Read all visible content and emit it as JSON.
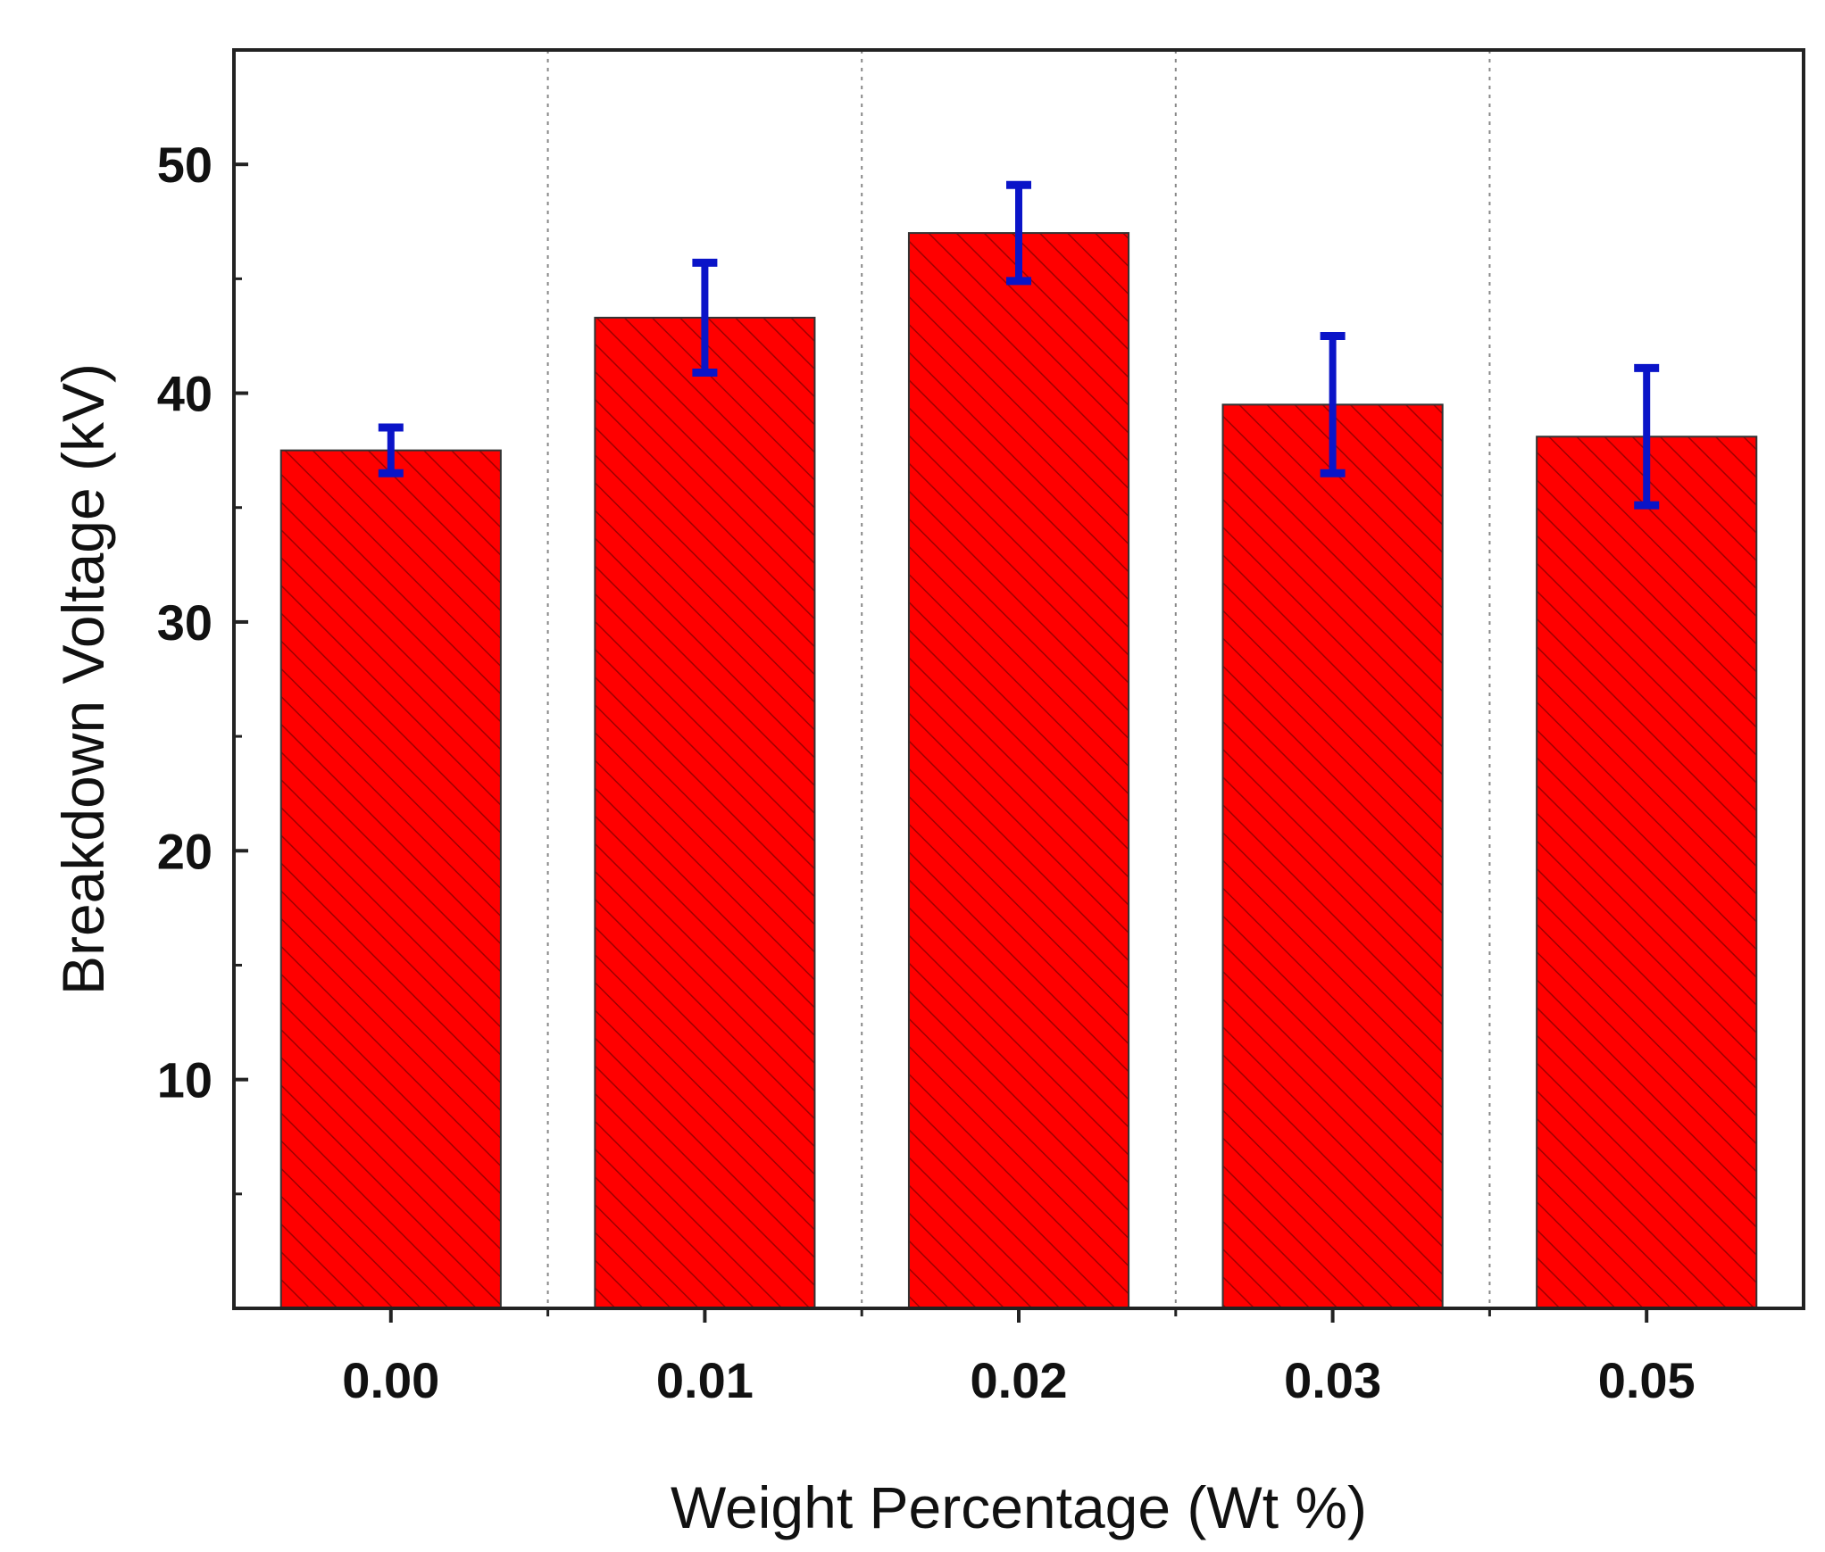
{
  "chart_data": {
    "type": "bar",
    "title": "",
    "xlabel": "Weight Percentage (Wt %)",
    "ylabel": "Breakdown Voltage (kV)",
    "categories": [
      "0.00",
      "0.01",
      "0.02",
      "0.03",
      "0.05"
    ],
    "values": [
      37.5,
      43.3,
      47.0,
      39.5,
      38.1
    ],
    "errors": [
      1.0,
      2.4,
      2.1,
      3.0,
      3.0
    ],
    "ylim": [
      0,
      55
    ],
    "yticks": [
      10,
      20,
      30,
      40,
      50
    ],
    "ytick_labels": [
      "10",
      "20",
      "30",
      "40",
      "50"
    ],
    "grid": "vertical dotted separators between categories",
    "colors": {
      "bar_fill": "#ff0000",
      "bar_hatch": "#a00000",
      "bar_edge": "#333333",
      "error_bar": "#0a14c8",
      "axis": "#222222",
      "separator": "#888888"
    }
  }
}
